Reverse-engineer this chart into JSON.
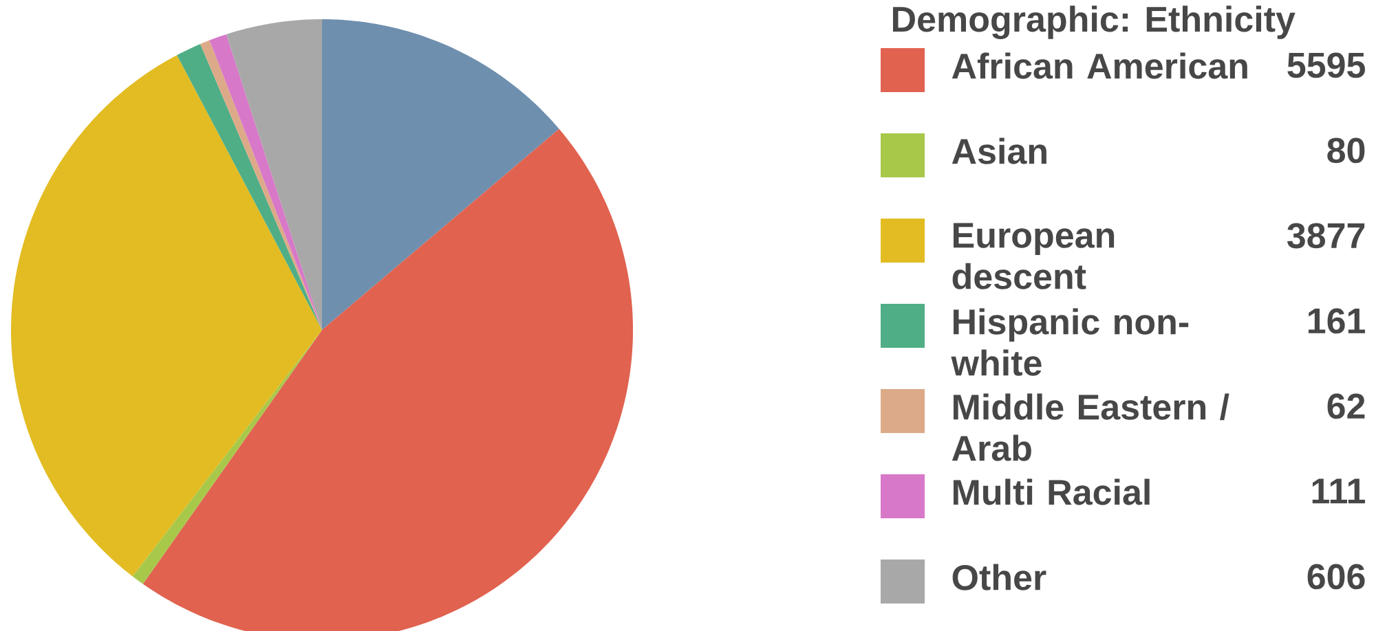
{
  "chart_data": {
    "type": "pie",
    "legend_title": "Demographic: Ethnicity",
    "legend": "right",
    "categories": [
      null,
      "African American",
      "Asian",
      "European descent",
      "Hispanic non-white",
      "Middle Eastern / Arab",
      "Multi Racial",
      "Other"
    ],
    "values": [
      1680,
      5595,
      80,
      3877,
      161,
      62,
      111,
      606
    ],
    "value_labels": [
      null,
      "5595",
      "80",
      "3877",
      "161",
      "62",
      "111",
      "606"
    ],
    "colors": [
      "#6f8fae",
      "#e0624f",
      "#a8c84a",
      "#e2bc22",
      "#4fae86",
      "#dcaa88",
      "#d878c8",
      "#a8a8a8"
    ]
  }
}
